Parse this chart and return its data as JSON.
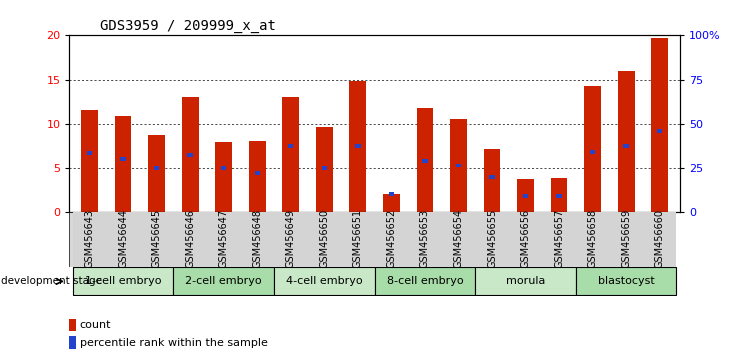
{
  "title": "GDS3959 / 209999_x_at",
  "samples": [
    "GSM456643",
    "GSM456644",
    "GSM456645",
    "GSM456646",
    "GSM456647",
    "GSM456648",
    "GSM456649",
    "GSM456650",
    "GSM456651",
    "GSM456652",
    "GSM456653",
    "GSM456654",
    "GSM456655",
    "GSM456656",
    "GSM456657",
    "GSM456658",
    "GSM456659",
    "GSM456660"
  ],
  "count_values": [
    11.6,
    10.9,
    8.7,
    13.0,
    8.0,
    8.1,
    13.0,
    9.6,
    14.8,
    2.1,
    11.8,
    10.5,
    7.2,
    3.8,
    3.9,
    14.3,
    16.0,
    19.7
  ],
  "percentile_values": [
    33.5,
    30.0,
    25.0,
    32.5,
    25.0,
    22.5,
    37.5,
    25.0,
    37.5,
    10.5,
    29.0,
    26.5,
    20.0,
    9.0,
    9.0,
    34.0,
    37.5,
    46.0
  ],
  "stage_names": [
    "1-cell embryo",
    "2-cell embryo",
    "4-cell embryo",
    "8-cell embryo",
    "morula",
    "blastocyst"
  ],
  "stage_ranges": [
    [
      0,
      3
    ],
    [
      3,
      6
    ],
    [
      6,
      9
    ],
    [
      9,
      12
    ],
    [
      12,
      15
    ],
    [
      15,
      18
    ]
  ],
  "stage_colors": [
    "#c8e8c8",
    "#a8dca8",
    "#c8e8c8",
    "#a8dca8",
    "#c8e8c8",
    "#a8dca8"
  ],
  "bar_color_red": "#cc2200",
  "bar_color_blue": "#2244cc",
  "ylim_left": [
    0,
    20
  ],
  "ylim_right": [
    0,
    100
  ],
  "yticks_left": [
    0,
    5,
    10,
    15,
    20
  ],
  "yticks_right": [
    0,
    25,
    50,
    75,
    100
  ],
  "ytick_labels_right": [
    "0",
    "25",
    "50",
    "75",
    "100%"
  ],
  "bar_width": 0.5,
  "title_fontsize": 10,
  "tick_label_fontsize": 7,
  "stage_fontsize": 8,
  "legend_fontsize": 8
}
